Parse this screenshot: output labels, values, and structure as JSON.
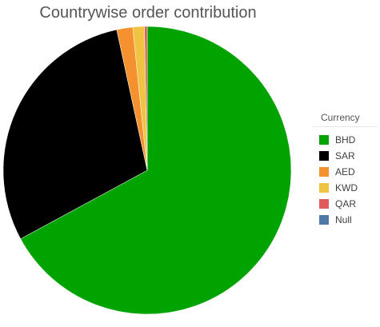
{
  "chart_data": {
    "type": "pie",
    "title": "Countrywise order contribution",
    "legend_title": "Currency",
    "legend_position": "right",
    "slices": [
      {
        "label": "BHD",
        "value": 67.1,
        "color": "#00a300"
      },
      {
        "label": "SAR",
        "value": 29.5,
        "color": "#000000"
      },
      {
        "label": "AED",
        "value": 1.8,
        "color": "#f5922f"
      },
      {
        "label": "KWD",
        "value": 1.3,
        "color": "#f0c442"
      },
      {
        "label": "QAR",
        "value": 0.3,
        "color": "#e05a5a"
      },
      {
        "label": "Null",
        "value": 0.0,
        "color": "#4e79a7"
      }
    ]
  }
}
